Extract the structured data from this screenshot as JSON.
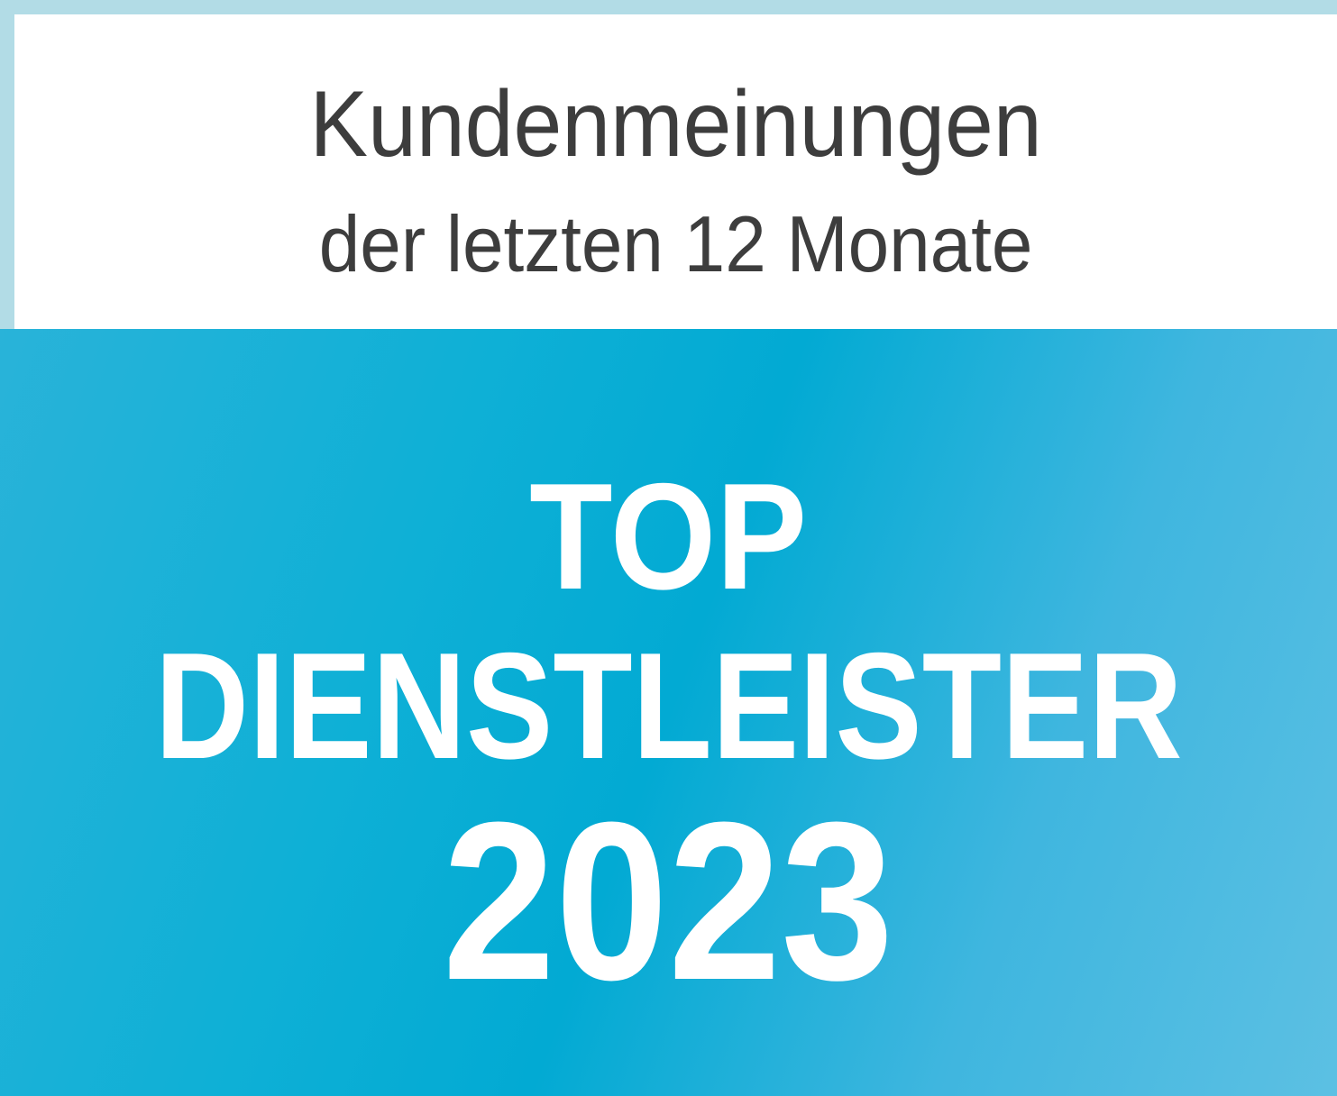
{
  "header": {
    "line1": "Kundenmeinungen",
    "line2": "der letzten 12 Monate"
  },
  "badge": {
    "line1": "TOP",
    "line2": "DIENSTLEISTER",
    "year": "2023"
  },
  "colors": {
    "border": "#b2dce6",
    "panel": "#ffffff",
    "text_dark": "#3d3d3d",
    "accent_blue": "#02aad3",
    "accent_light": "#5cc0e3"
  }
}
